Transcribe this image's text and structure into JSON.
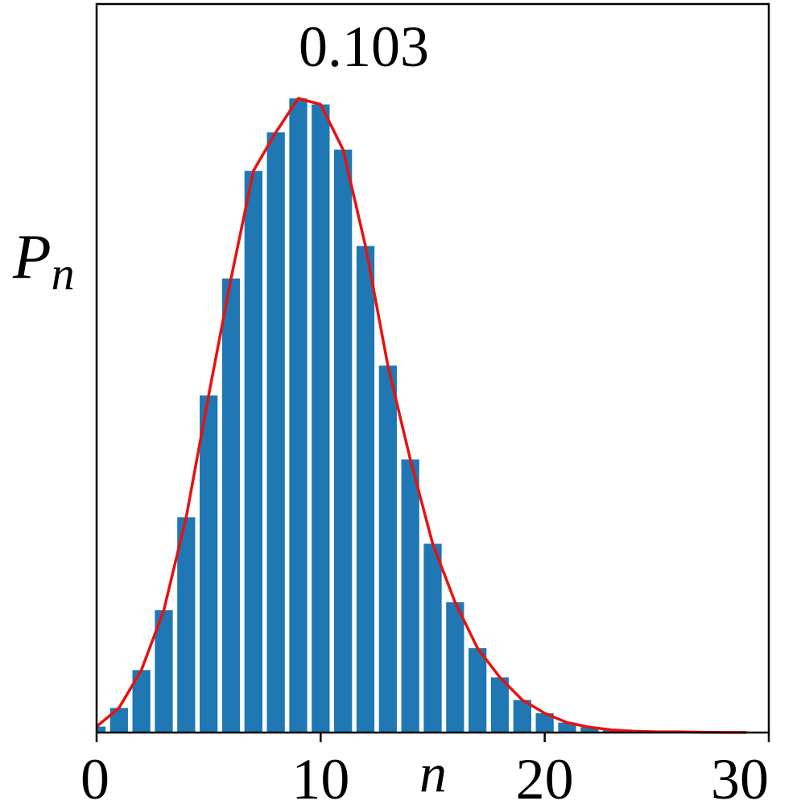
{
  "chart_data": {
    "type": "bar",
    "title": "0.103",
    "xlabel": "n",
    "ylabel": "P",
    "ylabel_subscript": "n",
    "xlim": [
      0,
      30
    ],
    "ylim": [
      0,
      0.1096
    ],
    "xticks": [
      "0",
      "10",
      "20",
      "30"
    ],
    "grid": false,
    "categories": [
      0,
      1,
      2,
      3,
      4,
      5,
      6,
      7,
      8,
      9,
      10,
      11,
      12,
      13,
      14,
      15,
      16,
      17,
      18,
      19,
      20,
      21,
      22,
      23,
      24,
      25,
      26,
      27,
      28,
      29
    ],
    "series": [
      {
        "kind": "bar",
        "values": [
          0.0009,
          0.0037,
          0.0094,
          0.0184,
          0.0324,
          0.0507,
          0.0683,
          0.0845,
          0.0903,
          0.0954,
          0.0945,
          0.0877,
          0.0732,
          0.0552,
          0.0411,
          0.0284,
          0.0196,
          0.0127,
          0.0083,
          0.0049,
          0.0029,
          0.0015,
          0.0008,
          0.0004,
          0.0002,
          0.0001,
          0.0001,
          5e-05,
          2e-05,
          1e-05
        ]
      },
      {
        "kind": "line",
        "values": [
          0.0009,
          0.0037,
          0.0094,
          0.0184,
          0.0324,
          0.0507,
          0.0683,
          0.0845,
          0.0903,
          0.0954,
          0.0945,
          0.0877,
          0.0732,
          0.0552,
          0.0411,
          0.0284,
          0.0196,
          0.0127,
          0.0083,
          0.0049,
          0.0029,
          0.0015,
          0.0008,
          0.0004,
          0.0002,
          0.0001,
          0.0001,
          5e-05,
          2e-05,
          1e-05
        ]
      }
    ]
  },
  "colors": {
    "bar": "#1f77b4",
    "line": "#e8120f",
    "axis": "#000000"
  }
}
